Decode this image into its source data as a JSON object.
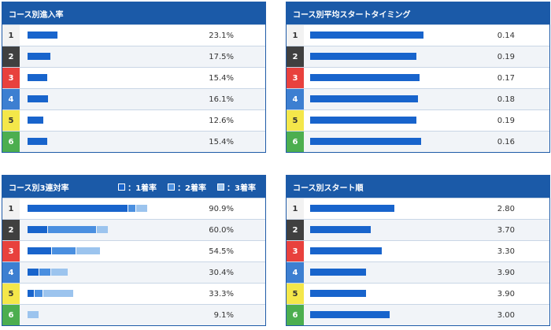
{
  "lane_colors": {
    "1": {
      "bg": "#f2f2f2",
      "fg": "#333333"
    },
    "2": {
      "bg": "#404040",
      "fg": "#ffffff"
    },
    "3": {
      "bg": "#e8413d",
      "fg": "#ffffff"
    },
    "4": {
      "bg": "#3d7fd1",
      "fg": "#ffffff"
    },
    "5": {
      "bg": "#f4e74a",
      "fg": "#333333"
    },
    "6": {
      "bg": "#4cae4f",
      "fg": "#ffffff"
    }
  },
  "bar_colors": {
    "first": "#1864cc",
    "second": "#4a8fe0",
    "third": "#9cc4ee"
  },
  "panel_entry": {
    "title": "コース別進入率",
    "rows": [
      {
        "lane": "1",
        "value": "23.1%",
        "fraction": 0.195
      },
      {
        "lane": "2",
        "value": "17.5%",
        "fraction": 0.15
      },
      {
        "lane": "3",
        "value": "15.4%",
        "fraction": 0.13
      },
      {
        "lane": "4",
        "value": "16.1%",
        "fraction": 0.135
      },
      {
        "lane": "5",
        "value": "12.6%",
        "fraction": 0.105
      },
      {
        "lane": "6",
        "value": "15.4%",
        "fraction": 0.13
      }
    ]
  },
  "panel_timing": {
    "title": "コース別平均スタートタイミング",
    "rows": [
      {
        "lane": "1",
        "value": "0.14",
        "fraction": 0.72
      },
      {
        "lane": "2",
        "value": "0.19",
        "fraction": 0.675
      },
      {
        "lane": "3",
        "value": "0.17",
        "fraction": 0.695
      },
      {
        "lane": "4",
        "value": "0.18",
        "fraction": 0.685
      },
      {
        "lane": "5",
        "value": "0.19",
        "fraction": 0.675
      },
      {
        "lane": "6",
        "value": "0.16",
        "fraction": 0.705
      }
    ]
  },
  "panel_rentai": {
    "title": "コース別3連対率",
    "legend": [
      {
        "label": "：1着率",
        "key": "first"
      },
      {
        "label": "：2着率",
        "key": "second"
      },
      {
        "label": "：3着率",
        "key": "third"
      }
    ],
    "rows": [
      {
        "lane": "1",
        "value": "90.9%",
        "segments": [
          0.655,
          0.045,
          0.07
        ]
      },
      {
        "lane": "2",
        "value": "60.0%",
        "segments": [
          0.13,
          0.315,
          0.07
        ]
      },
      {
        "lane": "3",
        "value": "54.5%",
        "segments": [
          0.155,
          0.155,
          0.155
        ]
      },
      {
        "lane": "4",
        "value": "30.4%",
        "segments": [
          0.07,
          0.07,
          0.11
        ]
      },
      {
        "lane": "5",
        "value": "33.3%",
        "segments": [
          0.04,
          0.05,
          0.195
        ]
      },
      {
        "lane": "6",
        "value": "9.1%",
        "segments": [
          0.0,
          0.0,
          0.07
        ]
      }
    ]
  },
  "panel_order": {
    "title": "コース別スタート順",
    "rows": [
      {
        "lane": "1",
        "value": "2.80",
        "fraction": 0.535
      },
      {
        "lane": "2",
        "value": "3.70",
        "fraction": 0.385
      },
      {
        "lane": "3",
        "value": "3.30",
        "fraction": 0.455
      },
      {
        "lane": "4",
        "value": "3.90",
        "fraction": 0.355
      },
      {
        "lane": "5",
        "value": "3.90",
        "fraction": 0.355
      },
      {
        "lane": "6",
        "value": "3.00",
        "fraction": 0.505
      }
    ]
  }
}
